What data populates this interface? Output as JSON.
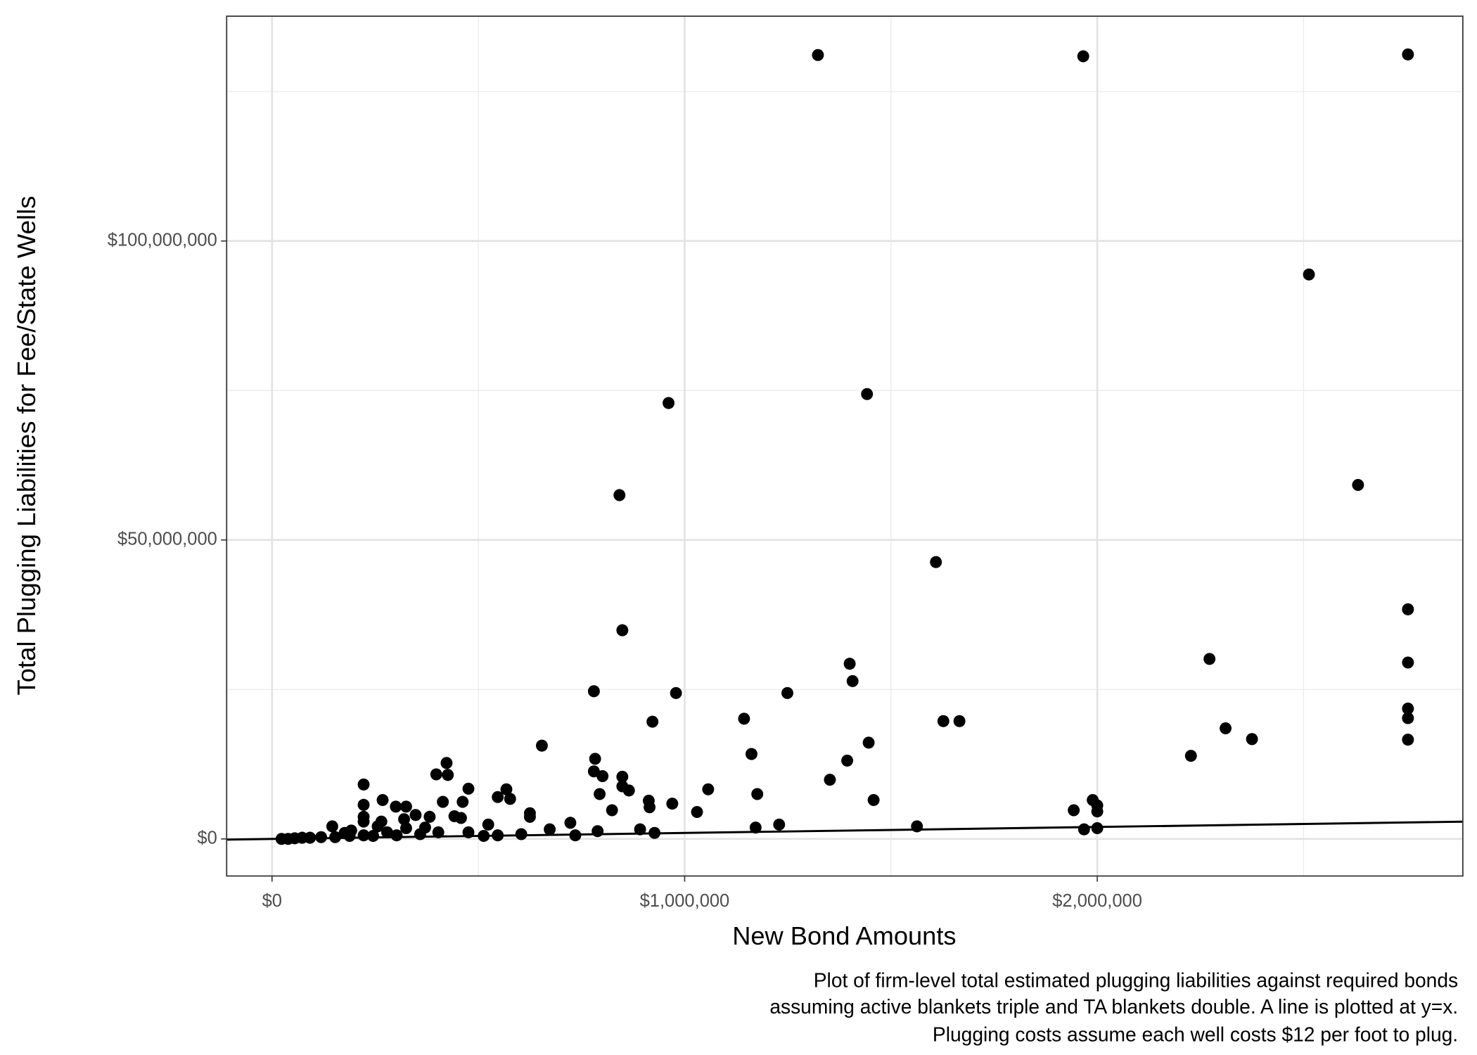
{
  "chart_data": {
    "type": "scatter",
    "x_label": "New Bond Amounts",
    "y_label": "Total Plugging Liabilities for Fee/State Wells",
    "caption": [
      "Plot of firm-level total estimated plugging liabilities against required bonds",
      "assuming active blankets triple and TA blankets double. A line is plotted at y=x.",
      "Plugging costs assume each well costs $12 per foot to plug."
    ],
    "xlim": [
      -110000,
      2886000
    ],
    "ylim": [
      -6200000,
      137600000
    ],
    "xticks": [
      {
        "value": 0,
        "label": "$0"
      },
      {
        "value": 1000000,
        "label": "$1,000,000"
      },
      {
        "value": 2000000,
        "label": "$2,000,000"
      }
    ],
    "yticks": [
      {
        "value": 0,
        "label": "$0"
      },
      {
        "value": 50000000,
        "label": "$50,000,000"
      },
      {
        "value": 100000000,
        "label": "$100,000,000"
      }
    ],
    "x_minor_grid": [
      500000,
      1500000,
      2500000
    ],
    "y_minor_grid": [
      25000000,
      75000000,
      125000000
    ],
    "grid": true,
    "color": "#000000",
    "reference_line": "y=x",
    "x": [
      1323000,
      1966000,
      2753000,
      2513000,
      961000,
      1442000,
      2632000,
      842000,
      1609000,
      2753000,
      849000,
      2753000,
      2272000,
      1400000,
      1407000,
      780000,
      979000,
      1249000,
      2753000,
      2753000,
      1144000,
      1627000,
      1666000,
      922000,
      2311000,
      2375000,
      2753000,
      1446000,
      654000,
      1162000,
      2227000,
      783000,
      1394000,
      423000,
      780000,
      398000,
      426000,
      849000,
      801000,
      1352000,
      222000,
      849000,
      476000,
      568000,
      865000,
      1057000,
      794000,
      1176000,
      547000,
      577000,
      268000,
      1458000,
      913000,
      1989000,
      414000,
      462000,
      222000,
      300000,
      325000,
      970000,
      2000000,
      915000,
      824000,
      1943000,
      2000000,
      1030000,
      625000,
      348000,
      625000,
      442000,
      222000,
      382000,
      458000,
      320000,
      265000,
      222000,
      723000,
      524000,
      146000,
      1563000,
      1229000,
      1172000,
      1968000,
      2000000,
      892000,
      673000,
      789000,
      403000,
      476000,
      927000,
      735000,
      604000,
      547000,
      513000,
      359000,
      302000,
      245000,
      188000,
      192000,
      119000,
      73000,
      39000,
      23000,
      55000,
      92000,
      153000,
      222000,
      279000,
      325000,
      371000,
      256000,
      176000
    ],
    "values": [
      131100000,
      130900000,
      131200000,
      94400000,
      72900000,
      74400000,
      59200000,
      57500000,
      46300000,
      38400000,
      34900000,
      29500000,
      30100000,
      29300000,
      26400000,
      24700000,
      24400000,
      24400000,
      21800000,
      20200000,
      20100000,
      19700000,
      19700000,
      19600000,
      18500000,
      16700000,
      16600000,
      16100000,
      15600000,
      14200000,
      13900000,
      13400000,
      13100000,
      12700000,
      11300000,
      10800000,
      10700000,
      10400000,
      10500000,
      9900000,
      9100000,
      8800000,
      8400000,
      8300000,
      8100000,
      8300000,
      7500000,
      7500000,
      7000000,
      6700000,
      6500000,
      6500000,
      6400000,
      6500000,
      6200000,
      6200000,
      5700000,
      5400000,
      5400000,
      5900000,
      5600000,
      5300000,
      4800000,
      4800000,
      4600000,
      4500000,
      4300000,
      4000000,
      3700000,
      3800000,
      3700000,
      3700000,
      3500000,
      3300000,
      2900000,
      2900000,
      2700000,
      2400000,
      2100000,
      2100000,
      2400000,
      1900000,
      1600000,
      1800000,
      1600000,
      1600000,
      1300000,
      1100000,
      1100000,
      1000000,
      600000,
      800000,
      600000,
      500000,
      800000,
      600000,
      500000,
      500000,
      1400000,
      300000,
      200000,
      0,
      0,
      100000,
      200000,
      300000,
      600000,
      1100000,
      1800000,
      1900000,
      2100000,
      1000000
    ]
  }
}
